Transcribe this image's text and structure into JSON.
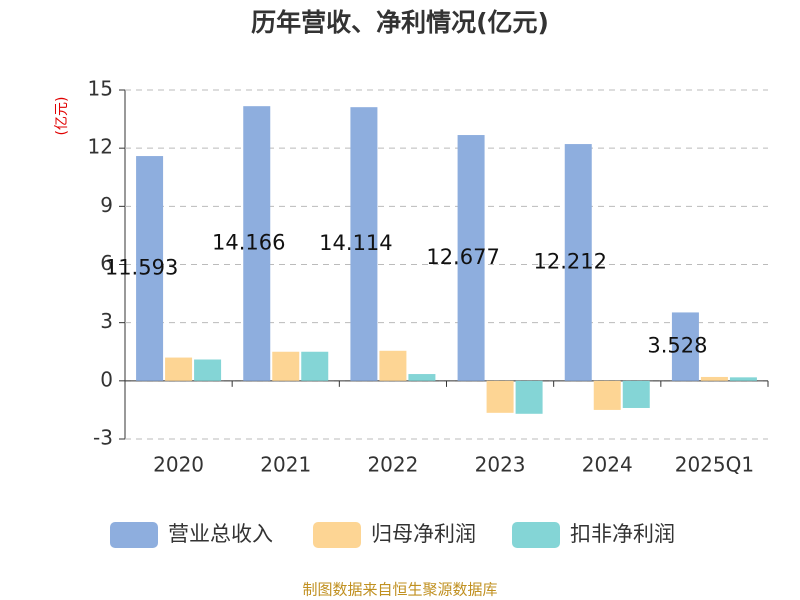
{
  "chart_data": {
    "type": "bar",
    "title": "历年营收、净利情况(亿元)",
    "y_label": "(亿元)",
    "categories": [
      "2020",
      "2021",
      "2022",
      "2023",
      "2024",
      "2025Q1"
    ],
    "series": [
      {
        "name": "营业总收入",
        "color": "#8eaede",
        "values": [
          11.593,
          14.166,
          14.114,
          12.677,
          12.212,
          3.528
        ],
        "data_labels": true
      },
      {
        "name": "归母净利润",
        "color": "#fdd594",
        "values": [
          1.2,
          1.5,
          1.55,
          -1.65,
          -1.5,
          0.2
        ]
      },
      {
        "name": "扣非净利润",
        "color": "#84d5d6",
        "values": [
          1.1,
          1.5,
          0.35,
          -1.7,
          -1.4,
          0.18
        ]
      }
    ],
    "ylim": [
      -3,
      15
    ],
    "yticks": [
      -3,
      0,
      3,
      6,
      9,
      12,
      15
    ],
    "grid": true,
    "legend": "bottom",
    "source": "制图数据来自恒生聚源数据库"
  }
}
